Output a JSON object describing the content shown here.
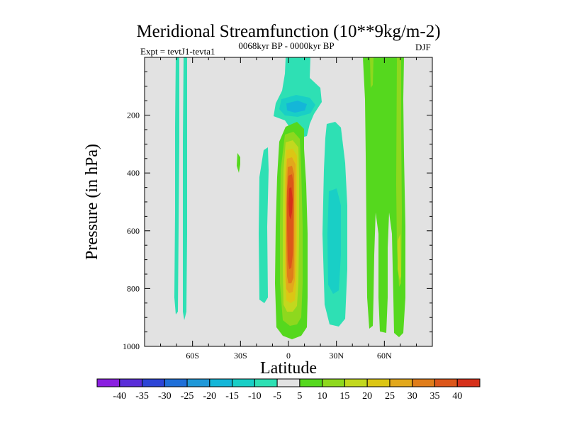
{
  "chart_data": {
    "type": "contour",
    "title": "Meridional Streamfunction (10**9kg/m-2)",
    "experiment_label": "Expt = tevtJ1-tevta1",
    "period_label": "0068kyr BP - 0000kyr BP",
    "season_label": "DJF",
    "xlabel": "Latitude",
    "ylabel": "Pressure (in hPa)",
    "xlim": [
      -90,
      90
    ],
    "ylim": [
      1000,
      0
    ],
    "x_ticks": [
      -60,
      -30,
      0,
      30,
      60
    ],
    "x_tick_labels": [
      "60S",
      "30S",
      "0",
      "30N",
      "60N"
    ],
    "y_ticks": [
      200,
      400,
      600,
      800,
      1000
    ],
    "y_tick_labels": [
      "200",
      "400",
      "600",
      "800",
      "1000"
    ],
    "levels": [
      -40,
      -35,
      -30,
      -25,
      -20,
      -15,
      -10,
      -5,
      5,
      10,
      15,
      20,
      25,
      30,
      35,
      40
    ],
    "colorbar_labels": [
      "-40",
      "-35",
      "-30",
      "-25",
      "-20",
      "-15",
      "-10",
      "-5",
      "5",
      "10",
      "15",
      "20",
      "25",
      "30",
      "35",
      "40"
    ],
    "colorbar_colors": [
      "#8a1fe0",
      "#5a2ed8",
      "#2d45d6",
      "#1f6fd8",
      "#1f98d8",
      "#14b6d8",
      "#19cfc6",
      "#2ee0b4",
      "#e2e2e2",
      "#55d81e",
      "#8ed81e",
      "#c2d81e",
      "#dcc614",
      "#e2a81c",
      "#e07d1a",
      "#dc561a",
      "#d6301a"
    ],
    "background_color": "#e2e2e2",
    "features": [
      {
        "name": "tropical-positive-cell",
        "sign": "positive",
        "peak_value": 40,
        "lat_range": [
          -8,
          10
        ],
        "pressure_range": [
          230,
          980
        ]
      },
      {
        "name": "upper-negative-cell",
        "sign": "negative",
        "peak_value": -15,
        "lat_range": [
          -10,
          10
        ],
        "pressure_range": [
          0,
          260
        ]
      },
      {
        "name": "south-subtropic-negative",
        "sign": "negative",
        "peak_value": -5,
        "lat_range": [
          -19,
          -12
        ],
        "pressure_range": [
          300,
          840
        ]
      },
      {
        "name": "north-subtropic-negative",
        "sign": "negative",
        "peak_value": -15,
        "lat_range": [
          22,
          33
        ],
        "pressure_range": [
          260,
          960
        ]
      },
      {
        "name": "midlatitude-positive-band",
        "sign": "positive",
        "peak_value": 20,
        "lat_range": [
          47,
          73
        ],
        "pressure_range": [
          0,
          980
        ]
      },
      {
        "name": "high-southern-negative-streaks",
        "sign": "negative",
        "peak_value": -5,
        "lat_range": [
          -71,
          -63
        ],
        "pressure_range": [
          0,
          910
        ]
      }
    ]
  }
}
